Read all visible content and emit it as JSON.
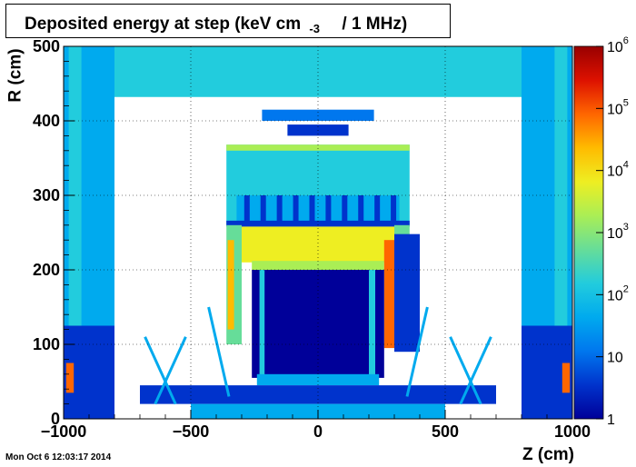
{
  "chart_data": {
    "type": "heatmap",
    "title_main": "Deposited energy at step (keV cm",
    "title_sup": "-3",
    "title_tail": "/ 1 MHz)",
    "xlabel": "Z (cm)",
    "ylabel": "R (cm)",
    "xlim": [
      -1000,
      1000
    ],
    "ylim": [
      0,
      500
    ],
    "x_ticks": [
      "−1000",
      "−500",
      "0",
      "500",
      "1000"
    ],
    "x_tick_values": [
      -1000,
      -500,
      0,
      500,
      1000
    ],
    "y_ticks": [
      "0",
      "100",
      "200",
      "300",
      "400",
      "500"
    ],
    "y_tick_values": [
      0,
      100,
      200,
      300,
      400,
      500
    ],
    "z_scale": "log",
    "zlim": [
      1,
      1000000
    ],
    "z_ticks": [
      {
        "base": "1",
        "exp": "",
        "value": 1
      },
      {
        "base": "10",
        "exp": "",
        "value": 10
      },
      {
        "base": "10",
        "exp": "2",
        "value": 100
      },
      {
        "base": "10",
        "exp": "3",
        "value": 1000
      },
      {
        "base": "10",
        "exp": "4",
        "value": 10000
      },
      {
        "base": "10",
        "exp": "5",
        "value": 100000
      },
      {
        "base": "10",
        "exp": "6",
        "value": 1000000
      }
    ],
    "grid": true,
    "colormap": [
      "#000099",
      "#0033cc",
      "#0077ee",
      "#00aaee",
      "#22ccdd",
      "#66dd99",
      "#aaee55",
      "#eeee22",
      "#ffbb00",
      "#ff6600",
      "#dd1100",
      "#990000"
    ]
  },
  "timestamp": "Mon Oct  6 12:03:17 2014"
}
